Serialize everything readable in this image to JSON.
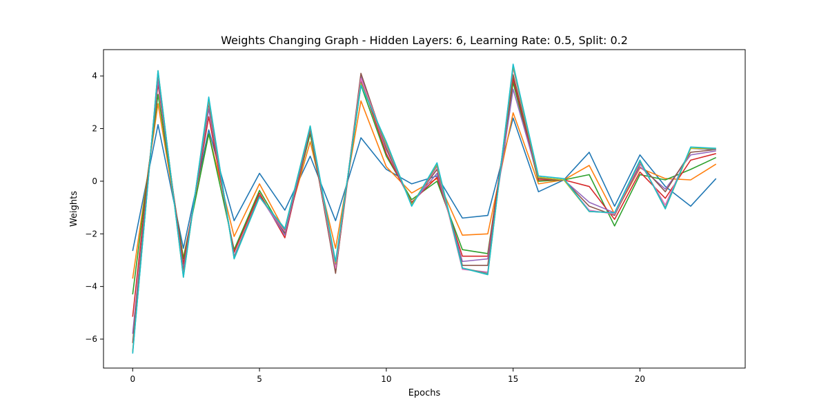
{
  "chart_data": {
    "type": "line",
    "title": "Weights Changing Graph - Hidden Layers: 6, Learning Rate: 0.5, Split: 0.2",
    "xlabel": "Epochs",
    "ylabel": "Weights",
    "xlim": [
      -1.15,
      24.15
    ],
    "ylim": [
      -7.1,
      5.0
    ],
    "xticks": [
      0,
      5,
      10,
      15,
      20
    ],
    "yticks": [
      -6,
      -4,
      -2,
      0,
      2,
      4
    ],
    "xtick_labels": [
      "0",
      "5",
      "10",
      "15",
      "20"
    ],
    "ytick_labels": [
      "−6",
      "−4",
      "−2",
      "0",
      "2",
      "4"
    ],
    "grid": false,
    "legend": "none",
    "x": [
      0,
      1,
      2,
      3,
      4,
      5,
      6,
      7,
      8,
      9,
      10,
      11,
      12,
      13,
      14,
      15,
      16,
      17,
      18,
      19,
      20,
      21,
      22,
      23
    ],
    "series": [
      {
        "color": "#1f77b4",
        "values": [
          -2.65,
          2.15,
          -2.55,
          1.95,
          -1.5,
          0.3,
          -1.1,
          0.95,
          -1.5,
          1.65,
          0.45,
          -0.1,
          0.2,
          -1.4,
          -1.3,
          2.4,
          -0.4,
          0.05,
          1.1,
          -0.95,
          1.0,
          -0.2,
          -0.95,
          0.1
        ]
      },
      {
        "color": "#ff7f0e",
        "values": [
          -3.7,
          2.95,
          -2.9,
          1.8,
          -2.1,
          -0.1,
          -1.9,
          1.5,
          -2.55,
          3.05,
          0.55,
          -0.45,
          0.1,
          -2.05,
          -2.0,
          2.6,
          -0.1,
          0.05,
          0.6,
          -1.25,
          0.5,
          0.1,
          0.05,
          0.65
        ]
      },
      {
        "color": "#2ca02c",
        "values": [
          -4.3,
          3.3,
          -2.95,
          1.8,
          -2.6,
          -0.35,
          -2.0,
          1.8,
          -3.2,
          3.65,
          0.95,
          -0.7,
          0.0,
          -2.6,
          -2.75,
          3.75,
          0.0,
          0.05,
          0.25,
          -1.7,
          0.25,
          0.05,
          0.45,
          0.9
        ]
      },
      {
        "color": "#d62728",
        "values": [
          -5.15,
          3.7,
          -3.15,
          2.45,
          -2.7,
          -0.45,
          -2.15,
          1.95,
          -3.45,
          3.85,
          1.05,
          -0.8,
          0.15,
          -2.85,
          -2.85,
          3.9,
          0.05,
          0.05,
          -0.2,
          -1.45,
          0.35,
          -0.65,
          0.8,
          1.05
        ]
      },
      {
        "color": "#9467bd",
        "values": [
          -5.8,
          3.85,
          -3.35,
          2.75,
          -2.85,
          -0.55,
          -2.05,
          2.0,
          -3.4,
          4.0,
          1.2,
          -0.85,
          0.3,
          -3.05,
          -2.95,
          3.5,
          0.1,
          0.05,
          -0.8,
          -1.2,
          0.55,
          -0.3,
          1.0,
          1.15
        ]
      },
      {
        "color": "#8c564b",
        "values": [
          -6.15,
          4.05,
          -3.45,
          2.95,
          -2.9,
          -0.55,
          -1.95,
          2.0,
          -3.5,
          4.1,
          1.25,
          -0.85,
          0.45,
          -3.2,
          -3.2,
          4.05,
          0.1,
          0.05,
          -0.95,
          -1.3,
          0.65,
          -0.4,
          1.1,
          1.2
        ]
      },
      {
        "color": "#e377c2",
        "values": [
          -6.45,
          4.1,
          -3.55,
          3.05,
          -2.9,
          -0.6,
          -1.9,
          2.05,
          -3.3,
          3.9,
          1.35,
          -0.9,
          0.55,
          -3.35,
          -3.45,
          4.3,
          0.15,
          0.05,
          -1.1,
          -1.25,
          0.7,
          -0.9,
          1.25,
          1.2
        ]
      },
      {
        "color": "#7f7f7f",
        "values": [
          -6.5,
          4.15,
          -3.6,
          3.1,
          -2.9,
          -0.6,
          -1.85,
          2.05,
          -3.15,
          3.75,
          1.4,
          -0.9,
          0.6,
          -3.3,
          -3.5,
          4.35,
          0.15,
          0.05,
          -1.15,
          -1.2,
          0.75,
          -1.0,
          1.25,
          1.2
        ]
      },
      {
        "color": "#bcbd22",
        "values": [
          -6.5,
          4.2,
          -3.65,
          3.15,
          -2.95,
          -0.6,
          -1.8,
          2.1,
          -3.1,
          3.7,
          1.45,
          -0.9,
          0.65,
          -3.3,
          -3.55,
          4.4,
          0.15,
          0.05,
          -1.15,
          -1.2,
          0.8,
          -1.05,
          1.25,
          1.25
        ]
      },
      {
        "color": "#17becf",
        "values": [
          -6.55,
          4.2,
          -3.65,
          3.2,
          -2.95,
          -0.6,
          -1.8,
          2.1,
          -3.05,
          3.65,
          1.5,
          -0.95,
          0.7,
          -3.3,
          -3.55,
          4.45,
          0.2,
          0.1,
          -1.15,
          -1.2,
          0.8,
          -1.05,
          1.3,
          1.25
        ]
      }
    ]
  }
}
